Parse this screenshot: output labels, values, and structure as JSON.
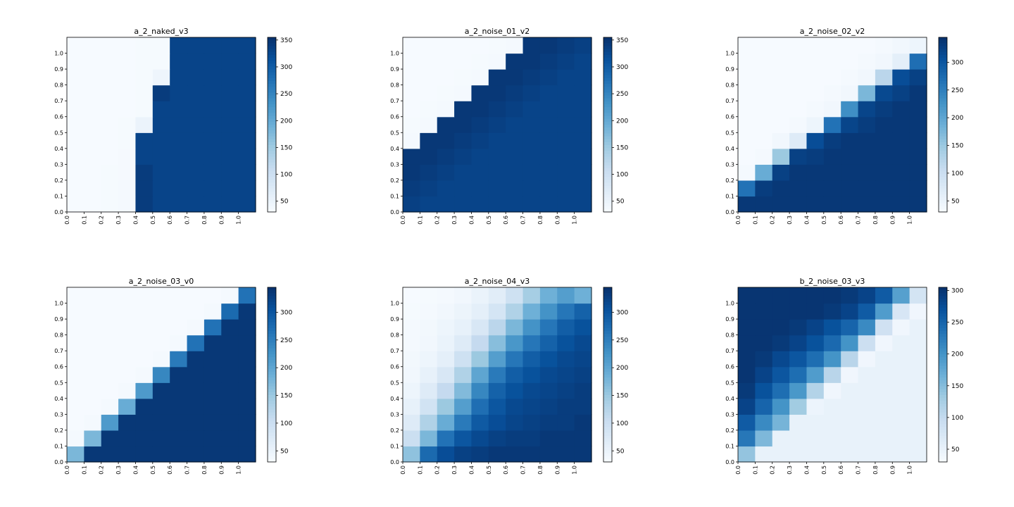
{
  "figure": {
    "colormap": "Blues",
    "colormap_stops": [
      "#f7fbff",
      "#deebf7",
      "#c6dbef",
      "#9ecae1",
      "#6baed6",
      "#4292c6",
      "#2171b5",
      "#08519c",
      "#08306b"
    ]
  },
  "chart_data": [
    {
      "type": "heatmap",
      "title": "a_2_naked_v3",
      "x_tick_labels": [
        "0.0",
        "0.1",
        "0.2",
        "0.3",
        "0.4",
        "0.5",
        "0.6",
        "0.7",
        "0.8",
        "0.9",
        "1.0"
      ],
      "y_tick_labels": [
        "0.0",
        "0.1",
        "0.2",
        "0.3",
        "0.4",
        "0.5",
        "0.6",
        "0.7",
        "0.8",
        "0.9",
        "1.0"
      ],
      "colorbar": {
        "vmin": 30,
        "vmax": 355,
        "ticks": [
          50,
          100,
          150,
          200,
          250,
          300,
          350
        ]
      },
      "values": [
        [
          32,
          32,
          33,
          35,
          340,
          330,
          330,
          330,
          330,
          330,
          330
        ],
        [
          32,
          32,
          33,
          35,
          340,
          330,
          330,
          330,
          330,
          330,
          330
        ],
        [
          32,
          32,
          33,
          34,
          340,
          330,
          330,
          330,
          330,
          330,
          330
        ],
        [
          32,
          32,
          32,
          34,
          330,
          330,
          330,
          330,
          330,
          330,
          330
        ],
        [
          32,
          32,
          32,
          33,
          330,
          330,
          330,
          330,
          330,
          330,
          330
        ],
        [
          32,
          32,
          32,
          33,
          50,
          330,
          330,
          330,
          330,
          330,
          330
        ],
        [
          32,
          32,
          32,
          32,
          33,
          330,
          330,
          330,
          330,
          330,
          330
        ],
        [
          32,
          32,
          32,
          32,
          33,
          340,
          330,
          330,
          330,
          330,
          330
        ],
        [
          32,
          32,
          32,
          32,
          33,
          45,
          330,
          330,
          330,
          330,
          330
        ],
        [
          32,
          32,
          32,
          32,
          33,
          33,
          330,
          330,
          330,
          330,
          330
        ],
        [
          32,
          32,
          32,
          32,
          33,
          33,
          330,
          330,
          330,
          330,
          330
        ]
      ]
    },
    {
      "type": "heatmap",
      "title": "a_2_noise_01_v2",
      "x_tick_labels": [
        "0.0",
        "0.1",
        "0.2",
        "0.3",
        "0.4",
        "0.5",
        "0.6",
        "0.7",
        "0.8",
        "0.9",
        "1.0"
      ],
      "y_tick_labels": [
        "0.0",
        "0.1",
        "0.2",
        "0.3",
        "0.4",
        "0.5",
        "0.6",
        "0.7",
        "0.8",
        "0.9",
        "1.0"
      ],
      "colorbar": {
        "vmin": 30,
        "vmax": 355,
        "ticks": [
          50,
          100,
          150,
          200,
          250,
          300,
          350
        ]
      },
      "values": [
        [
          335,
          330,
          330,
          330,
          330,
          330,
          330,
          330,
          330,
          330,
          330
        ],
        [
          340,
          335,
          330,
          330,
          330,
          330,
          330,
          330,
          330,
          330,
          330
        ],
        [
          345,
          340,
          335,
          330,
          330,
          330,
          330,
          330,
          330,
          330,
          330
        ],
        [
          345,
          345,
          340,
          335,
          330,
          330,
          330,
          330,
          330,
          330,
          330
        ],
        [
          35,
          345,
          345,
          340,
          335,
          330,
          330,
          330,
          330,
          330,
          330
        ],
        [
          33,
          35,
          345,
          345,
          340,
          335,
          330,
          330,
          330,
          330,
          330
        ],
        [
          32,
          33,
          35,
          345,
          345,
          340,
          335,
          330,
          330,
          330,
          330
        ],
        [
          32,
          32,
          33,
          35,
          345,
          345,
          340,
          335,
          330,
          330,
          330
        ],
        [
          32,
          32,
          32,
          33,
          35,
          345,
          345,
          340,
          335,
          330,
          330
        ],
        [
          32,
          32,
          32,
          32,
          33,
          35,
          345,
          345,
          340,
          335,
          330
        ],
        [
          32,
          32,
          32,
          32,
          32,
          33,
          35,
          345,
          345,
          340,
          335
        ]
      ]
    },
    {
      "type": "heatmap",
      "title": "a_2_noise_02_v2",
      "x_tick_labels": [
        "0.0",
        "0.1",
        "0.2",
        "0.3",
        "0.4",
        "0.5",
        "0.6",
        "0.7",
        "0.8",
        "0.9",
        "1.0"
      ],
      "y_tick_labels": [
        "0.0",
        "0.1",
        "0.2",
        "0.3",
        "0.4",
        "0.5",
        "0.6",
        "0.7",
        "0.8",
        "0.9",
        "1.0"
      ],
      "colorbar": {
        "vmin": 30,
        "vmax": 345,
        "ticks": [
          50,
          100,
          150,
          200,
          250,
          300
        ]
      },
      "values": [
        [
          335,
          335,
          335,
          335,
          335,
          335,
          335,
          335,
          335,
          335,
          335
        ],
        [
          265,
          330,
          335,
          335,
          335,
          335,
          335,
          335,
          335,
          335,
          335
        ],
        [
          35,
          190,
          325,
          335,
          335,
          335,
          335,
          335,
          335,
          335,
          335
        ],
        [
          32,
          35,
          150,
          325,
          330,
          335,
          335,
          335,
          335,
          335,
          335
        ],
        [
          32,
          32,
          40,
          70,
          310,
          330,
          335,
          335,
          335,
          335,
          335
        ],
        [
          32,
          32,
          32,
          35,
          45,
          265,
          320,
          330,
          335,
          335,
          335
        ],
        [
          32,
          32,
          32,
          32,
          35,
          40,
          230,
          320,
          330,
          335,
          335
        ],
        [
          32,
          32,
          32,
          32,
          32,
          35,
          40,
          175,
          315,
          325,
          335
        ],
        [
          32,
          32,
          32,
          32,
          32,
          32,
          35,
          40,
          120,
          310,
          325
        ],
        [
          32,
          32,
          32,
          32,
          32,
          32,
          32,
          35,
          40,
          60,
          270
        ],
        [
          32,
          32,
          32,
          32,
          32,
          32,
          32,
          32,
          35,
          40,
          45
        ]
      ]
    },
    {
      "type": "heatmap",
      "title": "a_2_noise_03_v0",
      "x_tick_labels": [
        "0.0",
        "0.1",
        "0.2",
        "0.3",
        "0.4",
        "0.5",
        "0.6",
        "0.7",
        "0.8",
        "0.9",
        "1.0"
      ],
      "y_tick_labels": [
        "0.0",
        "0.1",
        "0.2",
        "0.3",
        "0.4",
        "0.5",
        "0.6",
        "0.7",
        "0.8",
        "0.9",
        "1.0"
      ],
      "colorbar": {
        "vmin": 30,
        "vmax": 345,
        "ticks": [
          50,
          100,
          150,
          200,
          250,
          300
        ]
      },
      "values": [
        [
          175,
          335,
          335,
          335,
          335,
          335,
          335,
          335,
          335,
          335,
          335
        ],
        [
          35,
          175,
          335,
          335,
          335,
          335,
          335,
          335,
          335,
          335,
          335
        ],
        [
          32,
          35,
          215,
          335,
          335,
          335,
          335,
          335,
          335,
          335,
          335
        ],
        [
          32,
          32,
          35,
          190,
          335,
          335,
          335,
          335,
          335,
          335,
          335
        ],
        [
          32,
          32,
          32,
          35,
          215,
          335,
          335,
          335,
          335,
          335,
          335
        ],
        [
          32,
          32,
          32,
          32,
          35,
          240,
          335,
          335,
          335,
          335,
          335
        ],
        [
          32,
          32,
          32,
          32,
          32,
          35,
          255,
          335,
          335,
          335,
          335
        ],
        [
          32,
          32,
          32,
          32,
          32,
          32,
          35,
          265,
          335,
          335,
          335
        ],
        [
          32,
          32,
          32,
          32,
          32,
          32,
          32,
          35,
          265,
          335,
          335
        ],
        [
          32,
          32,
          32,
          32,
          32,
          32,
          32,
          32,
          35,
          275,
          335
        ],
        [
          32,
          32,
          32,
          32,
          32,
          32,
          32,
          32,
          32,
          35,
          265
        ]
      ]
    },
    {
      "type": "heatmap",
      "title": "a_2_noise_04_v3",
      "x_tick_labels": [
        "0.0",
        "0.1",
        "0.2",
        "0.3",
        "0.4",
        "0.5",
        "0.6",
        "0.7",
        "0.8",
        "0.9",
        "1.0"
      ],
      "y_tick_labels": [
        "0.0",
        "0.1",
        "0.2",
        "0.3",
        "0.4",
        "0.5",
        "0.6",
        "0.7",
        "0.8",
        "0.9",
        "1.0"
      ],
      "colorbar": {
        "vmin": 30,
        "vmax": 345,
        "ticks": [
          50,
          100,
          150,
          200,
          250,
          300
        ]
      },
      "values": [
        [
          160,
          275,
          310,
          325,
          330,
          335,
          335,
          335,
          335,
          335,
          335
        ],
        [
          100,
          175,
          265,
          300,
          315,
          325,
          330,
          330,
          335,
          335,
          335
        ],
        [
          70,
          130,
          190,
          255,
          295,
          310,
          320,
          325,
          330,
          330,
          335
        ],
        [
          55,
          90,
          150,
          210,
          270,
          300,
          315,
          320,
          325,
          330,
          330
        ],
        [
          45,
          70,
          110,
          170,
          240,
          285,
          305,
          315,
          320,
          325,
          330
        ],
        [
          40,
          55,
          80,
          130,
          200,
          255,
          290,
          305,
          315,
          320,
          325
        ],
        [
          38,
          45,
          60,
          95,
          150,
          210,
          260,
          290,
          305,
          315,
          320
        ],
        [
          35,
          40,
          50,
          70,
          110,
          165,
          220,
          260,
          285,
          305,
          315
        ],
        [
          35,
          38,
          45,
          55,
          80,
          120,
          175,
          225,
          260,
          290,
          305
        ],
        [
          33,
          35,
          40,
          48,
          60,
          85,
          130,
          185,
          225,
          260,
          285
        ],
        [
          32,
          33,
          35,
          40,
          50,
          65,
          95,
          140,
          185,
          210,
          185
        ]
      ]
    },
    {
      "type": "heatmap",
      "title": "b_2_noise_03_v3",
      "x_tick_labels": [
        "0.0",
        "0.1",
        "0.2",
        "0.3",
        "0.4",
        "0.5",
        "0.6",
        "0.7",
        "0.8",
        "0.9",
        "1.0"
      ],
      "y_tick_labels": [
        "0.0",
        "0.1",
        "0.2",
        "0.3",
        "0.4",
        "0.5",
        "0.6",
        "0.7",
        "0.8",
        "0.9",
        "1.0"
      ],
      "colorbar": {
        "vmin": 30,
        "vmax": 305,
        "ticks": [
          50,
          100,
          150,
          200,
          250,
          300
        ]
      },
      "values": [
        [
          140,
          50,
          50,
          50,
          50,
          50,
          50,
          50,
          50,
          50,
          50
        ],
        [
          230,
          155,
          50,
          50,
          50,
          50,
          50,
          50,
          50,
          50,
          50
        ],
        [
          260,
          210,
          160,
          50,
          50,
          50,
          50,
          50,
          50,
          50,
          50
        ],
        [
          285,
          250,
          200,
          130,
          45,
          50,
          50,
          50,
          50,
          50,
          50
        ],
        [
          295,
          270,
          240,
          195,
          115,
          40,
          50,
          50,
          50,
          50,
          50
        ],
        [
          300,
          285,
          265,
          240,
          190,
          110,
          40,
          50,
          50,
          50,
          50
        ],
        [
          300,
          295,
          280,
          265,
          240,
          200,
          110,
          40,
          50,
          50,
          50
        ],
        [
          300,
          300,
          295,
          285,
          270,
          245,
          200,
          90,
          40,
          50,
          50
        ],
        [
          300,
          300,
          300,
          295,
          285,
          270,
          250,
          210,
          85,
          40,
          50
        ],
        [
          300,
          300,
          300,
          300,
          300,
          295,
          285,
          260,
          190,
          75,
          40
        ],
        [
          300,
          300,
          300,
          300,
          300,
          300,
          295,
          285,
          260,
          185,
          80
        ]
      ]
    }
  ]
}
